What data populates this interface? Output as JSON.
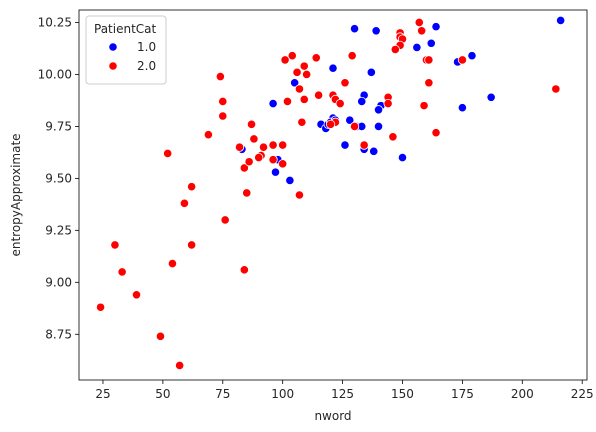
{
  "chart_data": {
    "type": "scatter",
    "xlabel": "nword",
    "ylabel": "entropyApproximate",
    "xlim": [
      15,
      227
    ],
    "ylim": [
      8.53,
      10.31
    ],
    "xticks": [
      25,
      50,
      75,
      100,
      125,
      150,
      175,
      200,
      225
    ],
    "yticks": [
      8.75,
      9.0,
      9.25,
      9.5,
      9.75,
      10.0,
      10.25
    ],
    "grid": false,
    "legend": {
      "title": "PatientCat",
      "placement": "top-left",
      "entries": [
        "1.0",
        "2.0"
      ]
    },
    "series": [
      {
        "name": "1.0",
        "color": "#0000ff",
        "points": [
          [
            216,
            10.26
          ],
          [
            164,
            10.23
          ],
          [
            130,
            10.22
          ],
          [
            139,
            10.21
          ],
          [
            162,
            10.15
          ],
          [
            156,
            10.13
          ],
          [
            179,
            10.09
          ],
          [
            173,
            10.06
          ],
          [
            137,
            10.01
          ],
          [
            121,
            10.03
          ],
          [
            105,
            9.96
          ],
          [
            134,
            9.9
          ],
          [
            133,
            9.87
          ],
          [
            187,
            9.89
          ],
          [
            141,
            9.85
          ],
          [
            140,
            9.83
          ],
          [
            175,
            9.84
          ],
          [
            96,
            9.86
          ],
          [
            121,
            9.79
          ],
          [
            128,
            9.78
          ],
          [
            131,
            9.75
          ],
          [
            133,
            9.75
          ],
          [
            140,
            9.75
          ],
          [
            116,
            9.76
          ],
          [
            118,
            9.74
          ],
          [
            119,
            9.76
          ],
          [
            120,
            9.77
          ],
          [
            122,
            9.78
          ],
          [
            126,
            9.66
          ],
          [
            134,
            9.64
          ],
          [
            138,
            9.63
          ],
          [
            150,
            9.6
          ],
          [
            98,
            9.59
          ],
          [
            97,
            9.53
          ],
          [
            103,
            9.49
          ],
          [
            83,
            9.64
          ]
        ]
      },
      {
        "name": "2.0",
        "color": "#ff0000",
        "points": [
          [
            157,
            10.25
          ],
          [
            158,
            10.21
          ],
          [
            149,
            10.2
          ],
          [
            149,
            10.18
          ],
          [
            150,
            10.17
          ],
          [
            149,
            10.14
          ],
          [
            147,
            10.12
          ],
          [
            160,
            10.07
          ],
          [
            161,
            10.07
          ],
          [
            175,
            10.07
          ],
          [
            104,
            10.09
          ],
          [
            101,
            10.07
          ],
          [
            114,
            10.08
          ],
          [
            129,
            10.09
          ],
          [
            74,
            9.99
          ],
          [
            109,
            10.04
          ],
          [
            110,
            10.0
          ],
          [
            106,
            10.01
          ],
          [
            107,
            9.93
          ],
          [
            115,
            9.9
          ],
          [
            121,
            9.9
          ],
          [
            122,
            9.88
          ],
          [
            109,
            9.88
          ],
          [
            102,
            9.87
          ],
          [
            126,
            9.96
          ],
          [
            124,
            9.86
          ],
          [
            161,
            9.96
          ],
          [
            144,
            9.89
          ],
          [
            144,
            9.86
          ],
          [
            159,
            9.85
          ],
          [
            75,
            9.87
          ],
          [
            75,
            9.8
          ],
          [
            108,
            9.77
          ],
          [
            87,
            9.76
          ],
          [
            122,
            9.77
          ],
          [
            120,
            9.76
          ],
          [
            130,
            9.75
          ],
          [
            146,
            9.7
          ],
          [
            164,
            9.72
          ],
          [
            214,
            9.93
          ],
          [
            69,
            9.71
          ],
          [
            88,
            9.69
          ],
          [
            92,
            9.65
          ],
          [
            96,
            9.66
          ],
          [
            100,
            9.66
          ],
          [
            82,
            9.65
          ],
          [
            91,
            9.61
          ],
          [
            90,
            9.6
          ],
          [
            96,
            9.59
          ],
          [
            100,
            9.57
          ],
          [
            84,
            9.55
          ],
          [
            86,
            9.58
          ],
          [
            52,
            9.62
          ],
          [
            134,
            9.66
          ],
          [
            107,
            9.42
          ],
          [
            85,
            9.43
          ],
          [
            62,
            9.46
          ],
          [
            59,
            9.38
          ],
          [
            76,
            9.3
          ],
          [
            62,
            9.18
          ],
          [
            30,
            9.18
          ],
          [
            54,
            9.09
          ],
          [
            33,
            9.05
          ],
          [
            84,
            9.06
          ],
          [
            39,
            8.94
          ],
          [
            24,
            8.88
          ],
          [
            49,
            8.74
          ],
          [
            57,
            8.6
          ]
        ]
      }
    ]
  }
}
